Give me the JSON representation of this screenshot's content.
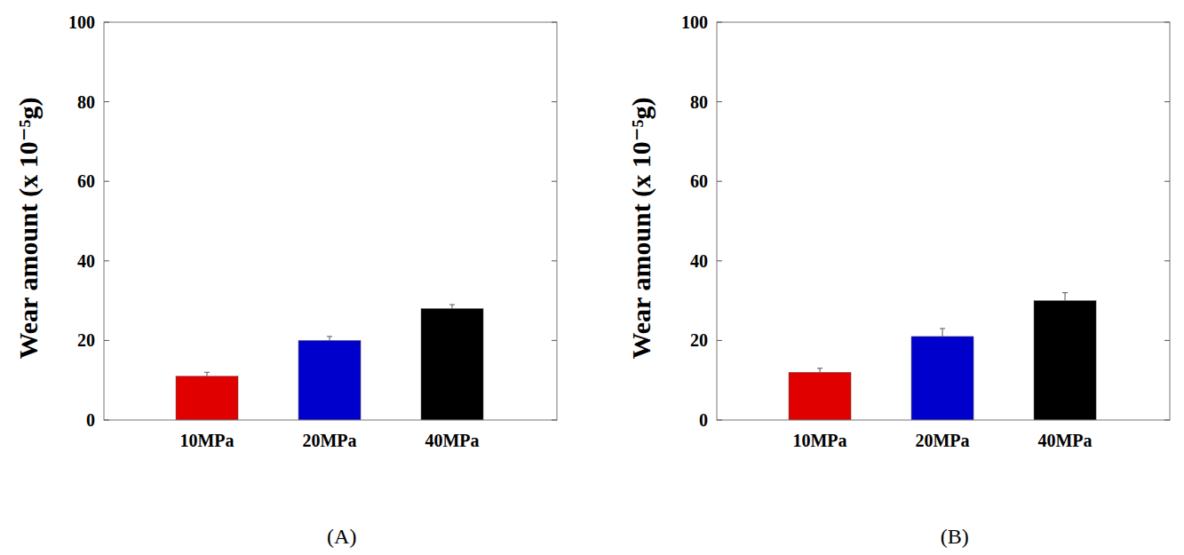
{
  "chart_data": [
    {
      "type": "bar",
      "title": "(A)",
      "y_label": "Wear amount (x 10⁻⁵g)",
      "categories": [
        "10MPa",
        "20MPa",
        "40MPa"
      ],
      "values": [
        11,
        20,
        28
      ],
      "errors": [
        1,
        1,
        1
      ],
      "colors": [
        "#e00000",
        "#0000cc",
        "#000000"
      ],
      "ylim": [
        0,
        100
      ],
      "yticks": [
        0,
        20,
        40,
        60,
        80,
        100
      ],
      "grid": false
    },
    {
      "type": "bar",
      "title": "(B)",
      "y_label": "Wear amount (x 10⁻⁵g)",
      "categories": [
        "10MPa",
        "20MPa",
        "40MPa"
      ],
      "values": [
        12,
        21,
        30
      ],
      "errors": [
        1,
        2,
        2
      ],
      "colors": [
        "#e00000",
        "#0000cc",
        "#000000"
      ],
      "ylim": [
        0,
        100
      ],
      "yticks": [
        0,
        20,
        40,
        60,
        80,
        100
      ],
      "grid": false
    }
  ]
}
